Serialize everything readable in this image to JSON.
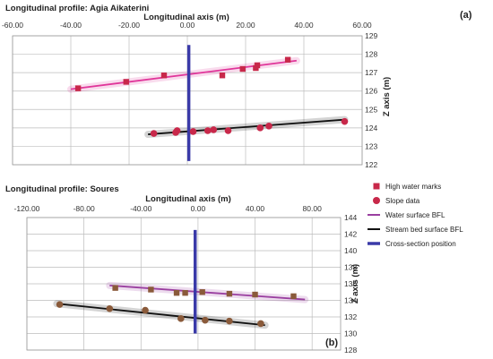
{
  "chart_data": [
    {
      "type": "scatter",
      "panel_label": "(a)",
      "title": "Longitudinal profile: Agia Aikaterini",
      "xlabel": "Longitudinal axis (m)",
      "ylabel": "Z axis (m)",
      "xlim": [
        -60,
        60
      ],
      "ylim": [
        122,
        129
      ],
      "x_ticks": [
        "-60.00",
        "-40.00",
        "-20.00",
        "0.00",
        "20.00",
        "40.00",
        "60.00"
      ],
      "y_ticks": [
        "122",
        "123",
        "124",
        "125",
        "126",
        "127",
        "128",
        "129"
      ],
      "grid": true,
      "series": [
        {
          "name": "High water marks",
          "marker": "square",
          "color": "#c8284a",
          "points": [
            [
              -37.5,
              126.15
            ],
            [
              -21,
              126.5
            ],
            [
              -8,
              126.85
            ],
            [
              12,
              126.85
            ],
            [
              19,
              127.2
            ],
            [
              23.5,
              127.25
            ],
            [
              24,
              127.4
            ],
            [
              34.5,
              127.7
            ]
          ]
        },
        {
          "name": "Slope data",
          "marker": "circle",
          "color": "#c8284a",
          "points": [
            [
              -11.5,
              123.7
            ],
            [
              -4,
              123.75
            ],
            [
              -3.5,
              123.85
            ],
            [
              2,
              123.8
            ],
            [
              7,
              123.85
            ],
            [
              9,
              123.9
            ],
            [
              14,
              123.85
            ],
            [
              25,
              124.0
            ],
            [
              28,
              124.1
            ],
            [
              54,
              124.35
            ]
          ]
        },
        {
          "name": "Water surface BFL",
          "type": "line",
          "color": "#e0369a",
          "x": [
            -40,
            37.5
          ],
          "y": [
            126.1,
            127.65
          ]
        },
        {
          "name": "Stream bed surface BFL",
          "type": "line",
          "color": "#111111",
          "x": [
            -13.5,
            54
          ],
          "y": [
            123.65,
            124.45
          ]
        },
        {
          "name": "Cross-section position",
          "type": "line",
          "color": "#3a3aa8",
          "x": [
            0.5,
            0.5
          ],
          "y": [
            122.2,
            128.5
          ]
        }
      ]
    },
    {
      "type": "scatter",
      "panel_label": "(b)",
      "title": "Longitudinal profile: Soures",
      "xlabel": "Longitudinal axis (m)",
      "ylabel": "Z axis (m)",
      "xlim": [
        -120,
        100
      ],
      "ylim": [
        128,
        144
      ],
      "x_ticks": [
        "-120.00",
        "-80.00",
        "-40.00",
        "0.00",
        "40.00",
        "80.00"
      ],
      "y_ticks": [
        "128",
        "130",
        "132",
        "134",
        "136",
        "138",
        "140",
        "142",
        "144"
      ],
      "grid": true,
      "series": [
        {
          "name": "High water marks",
          "marker": "square",
          "color": "#8a5a3a",
          "points": [
            [
              -58,
              135.5
            ],
            [
              -33,
              135.3
            ],
            [
              -15,
              134.9
            ],
            [
              -9,
              134.9
            ],
            [
              3,
              135.0
            ],
            [
              22,
              134.8
            ],
            [
              40,
              134.7
            ],
            [
              67,
              134.5
            ]
          ]
        },
        {
          "name": "Slope data",
          "marker": "circle",
          "color": "#8a5a3a",
          "points": [
            [
              -97,
              133.5
            ],
            [
              -62,
              133.0
            ],
            [
              -37,
              132.8
            ],
            [
              -12,
              131.8
            ],
            [
              5,
              131.6
            ],
            [
              22,
              131.5
            ],
            [
              44,
              131.2
            ]
          ]
        },
        {
          "name": "Water surface BFL",
          "type": "line",
          "color": "#9a3fa0",
          "x": [
            -62,
            75
          ],
          "y": [
            135.8,
            134.1
          ]
        },
        {
          "name": "Stream bed surface BFL",
          "type": "line",
          "color": "#111111",
          "x": [
            -99,
            47
          ],
          "y": [
            133.6,
            131.0
          ]
        },
        {
          "name": "Cross-section position",
          "type": "line",
          "color": "#3a3aa8",
          "x": [
            -2,
            -2
          ],
          "y": [
            130.0,
            142.5
          ]
        }
      ]
    }
  ],
  "legend": {
    "placement": "right",
    "items": [
      {
        "label": "High water marks",
        "kind": "square",
        "color": "#c8284a"
      },
      {
        "label": "Slope data",
        "kind": "circle",
        "color": "#c8284a"
      },
      {
        "label": "Water surface BFL",
        "kind": "line",
        "color": "#9a3fa0"
      },
      {
        "label": "Stream bed surface BFL",
        "kind": "line",
        "color": "#111111"
      },
      {
        "label": "Cross-section position",
        "kind": "line",
        "color": "#3a3aa8"
      }
    ]
  }
}
